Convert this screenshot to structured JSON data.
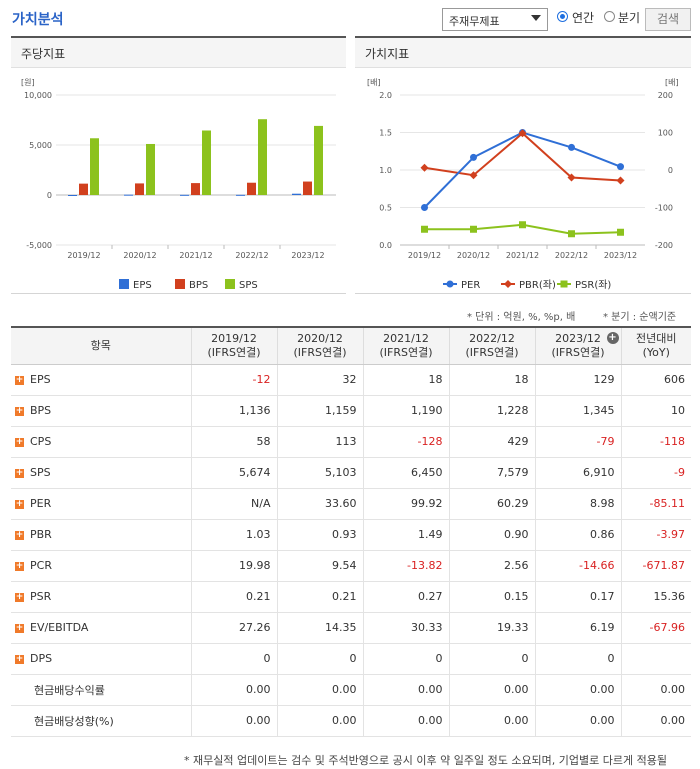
{
  "header": {
    "title": "가치분석",
    "select_value": "주재무제표",
    "radio_annual": "연간",
    "radio_quarter": "분기",
    "search_label": "검색"
  },
  "panels": {
    "left_title": "주당지표",
    "right_title": "가치지표"
  },
  "chart_data": [
    {
      "type": "bar",
      "title": "주당지표",
      "ylabel": "[원]",
      "categories": [
        "2019/12",
        "2020/12",
        "2021/12",
        "2022/12",
        "2023/12"
      ],
      "ylim": [
        -5000,
        10000
      ],
      "yticks": [
        "10,000",
        "5,000",
        "0",
        "-5,000"
      ],
      "series": [
        {
          "name": "EPS",
          "color": "#2f6fd6",
          "values": [
            -12,
            32,
            18,
            18,
            129
          ]
        },
        {
          "name": "BPS",
          "color": "#d1401e",
          "values": [
            1136,
            1159,
            1190,
            1228,
            1345
          ]
        },
        {
          "name": "SPS",
          "color": "#8cc21d",
          "values": [
            5674,
            5103,
            6450,
            7579,
            6910
          ]
        }
      ],
      "legend": "bottom",
      "grid": true
    },
    {
      "type": "line",
      "title": "가치지표",
      "ylabel_left": "[배]",
      "ylabel_right": "[배]",
      "categories": [
        "2019/12",
        "2020/12",
        "2021/12",
        "2022/12",
        "2023/12"
      ],
      "ylim_left": [
        0,
        2.0
      ],
      "ylim_right": [
        -200,
        200
      ],
      "yticks_left": [
        "2.0",
        "1.5",
        "1.0",
        "0.5",
        "0.0"
      ],
      "yticks_right": [
        "200",
        "100",
        "0",
        "-100",
        "-200"
      ],
      "series": [
        {
          "name": "PER",
          "axis": "right",
          "color": "#2f6fd6",
          "marker": "circle",
          "values": [
            null,
            33.6,
            99.92,
            60.29,
            8.98
          ]
        },
        {
          "name": "PBR(좌)",
          "axis": "left",
          "color": "#d1401e",
          "marker": "diamond",
          "values": [
            1.03,
            0.93,
            1.49,
            0.9,
            0.86
          ]
        },
        {
          "name": "PSR(좌)",
          "axis": "left",
          "color": "#8cc21d",
          "marker": "square",
          "values": [
            0.21,
            0.21,
            0.27,
            0.15,
            0.17
          ]
        }
      ],
      "legend": "bottom",
      "grid": true
    }
  ],
  "units_left": "* 단위 : 억원, %, %p, 배",
  "units_right": "* 분기 : 순액기준",
  "table": {
    "headers": [
      {
        "l1": "항목",
        "l2": ""
      },
      {
        "l1": "2019/12",
        "l2": "(IFRS연결)"
      },
      {
        "l1": "2020/12",
        "l2": "(IFRS연결)"
      },
      {
        "l1": "2021/12",
        "l2": "(IFRS연결)"
      },
      {
        "l1": "2022/12",
        "l2": "(IFRS연결)"
      },
      {
        "l1": "2023/12",
        "l2": "(IFRS연결)"
      },
      {
        "l1": "전년대비",
        "l2": "(YoY)"
      }
    ],
    "rows": [
      {
        "label": "EPS",
        "expand": true,
        "cells": [
          "-12",
          "32",
          "18",
          "18",
          "129",
          "606"
        ]
      },
      {
        "label": "BPS",
        "expand": true,
        "cells": [
          "1,136",
          "1,159",
          "1,190",
          "1,228",
          "1,345",
          "10"
        ]
      },
      {
        "label": "CPS",
        "expand": true,
        "cells": [
          "58",
          "113",
          "-128",
          "429",
          "-79",
          "-118"
        ]
      },
      {
        "label": "SPS",
        "expand": true,
        "cells": [
          "5,674",
          "5,103",
          "6,450",
          "7,579",
          "6,910",
          "-9"
        ]
      },
      {
        "label": "PER",
        "expand": true,
        "cells": [
          "N/A",
          "33.60",
          "99.92",
          "60.29",
          "8.98",
          "-85.11"
        ]
      },
      {
        "label": "PBR",
        "expand": true,
        "cells": [
          "1.03",
          "0.93",
          "1.49",
          "0.90",
          "0.86",
          "-3.97"
        ]
      },
      {
        "label": "PCR",
        "expand": true,
        "cells": [
          "19.98",
          "9.54",
          "-13.82",
          "2.56",
          "-14.66",
          "-671.87"
        ]
      },
      {
        "label": "PSR",
        "expand": true,
        "cells": [
          "0.21",
          "0.21",
          "0.27",
          "0.15",
          "0.17",
          "15.36"
        ]
      },
      {
        "label": "EV/EBITDA",
        "expand": true,
        "cells": [
          "27.26",
          "14.35",
          "30.33",
          "19.33",
          "6.19",
          "-67.96"
        ]
      },
      {
        "label": "DPS",
        "expand": true,
        "cells": [
          "0",
          "0",
          "0",
          "0",
          "0",
          ""
        ]
      },
      {
        "label": "현금배당수익률",
        "expand": false,
        "cells": [
          "0.00",
          "0.00",
          "0.00",
          "0.00",
          "0.00",
          "0.00"
        ]
      },
      {
        "label": "현금배당성향(%)",
        "expand": false,
        "cells": [
          "0.00",
          "0.00",
          "0.00",
          "0.00",
          "0.00",
          "0.00"
        ]
      }
    ]
  },
  "footnote": "* 재무실적 업데이트는 검수 및 주석반영으로 공시 이후 약 일주일 정도 소요되며, 기업별로 다르게 적용될"
}
